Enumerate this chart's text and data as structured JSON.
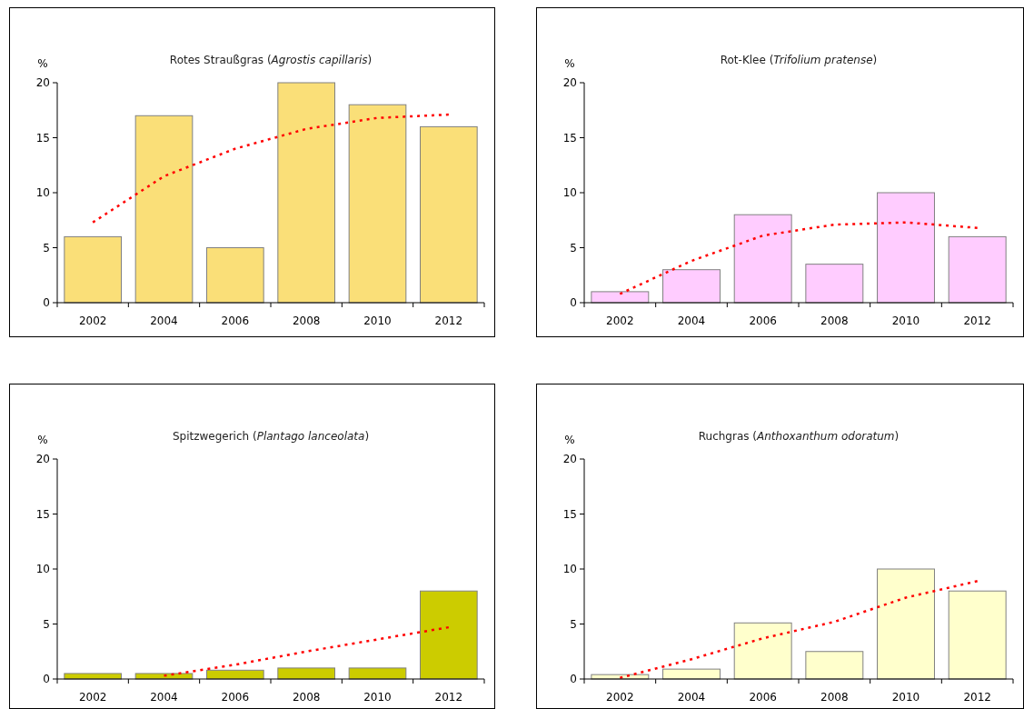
{
  "chart_data": [
    {
      "type": "bar",
      "title": "Rotes Straußgras (Agrostis capillaris)",
      "ylabel": "%",
      "categories": [
        "2002",
        "2004",
        "2006",
        "2008",
        "2010",
        "2012"
      ],
      "ylim": [
        0,
        20
      ],
      "yticks": [
        0,
        5,
        10,
        15,
        20
      ],
      "series": [
        {
          "color": "#fadf78",
          "values": [
            6,
            17,
            5,
            20,
            18,
            16
          ]
        },
        {
          "type": "line",
          "color": "#ff0000",
          "line_style": "dotted",
          "values": [
            7.3,
            11.5,
            14.0,
            15.8,
            16.8,
            17.1
          ]
        }
      ]
    },
    {
      "type": "bar",
      "title": "Rot-Klee (Trifolium pratense)",
      "ylabel": "%",
      "categories": [
        "2002",
        "2004",
        "2006",
        "2008",
        "2010",
        "2012"
      ],
      "ylim": [
        0,
        20
      ],
      "yticks": [
        0,
        5,
        10,
        15,
        20
      ],
      "series": [
        {
          "color": "#ffccff",
          "values": [
            1,
            3,
            8,
            3.5,
            10,
            6
          ]
        },
        {
          "type": "line",
          "color": "#ff0000",
          "line_style": "dotted",
          "values": [
            0.8,
            3.8,
            6.1,
            7.1,
            7.3,
            6.8
          ]
        }
      ]
    },
    {
      "type": "bar",
      "title": "Spitzwegerich (Plantago lanceolata)",
      "ylabel": "%",
      "categories": [
        "2002",
        "2004",
        "2006",
        "2008",
        "2010",
        "2012"
      ],
      "ylim": [
        0,
        20
      ],
      "yticks": [
        0,
        5,
        10,
        15,
        20
      ],
      "series": [
        {
          "color": "#cccc00",
          "values": [
            0.5,
            0.5,
            0.8,
            1,
            1,
            8
          ]
        },
        {
          "type": "line",
          "color": "#ff0000",
          "line_style": "dotted",
          "values": [
            null,
            0.3,
            1.3,
            2.5,
            3.6,
            4.7
          ]
        }
      ]
    },
    {
      "type": "bar",
      "title": "Ruchgras (Anthoxanthum odoratum)",
      "ylabel": "%",
      "categories": [
        "2002",
        "2004",
        "2006",
        "2008",
        "2010",
        "2012"
      ],
      "ylim": [
        0,
        20
      ],
      "yticks": [
        0,
        5,
        10,
        15,
        20
      ],
      "series": [
        {
          "color": "#ffffcc",
          "values": [
            0.4,
            0.9,
            5.1,
            2.5,
            10,
            8
          ]
        },
        {
          "type": "line",
          "color": "#ff0000",
          "line_style": "dotted",
          "values": [
            0.1,
            1.8,
            3.7,
            5.2,
            7.4,
            8.9
          ]
        }
      ]
    }
  ]
}
